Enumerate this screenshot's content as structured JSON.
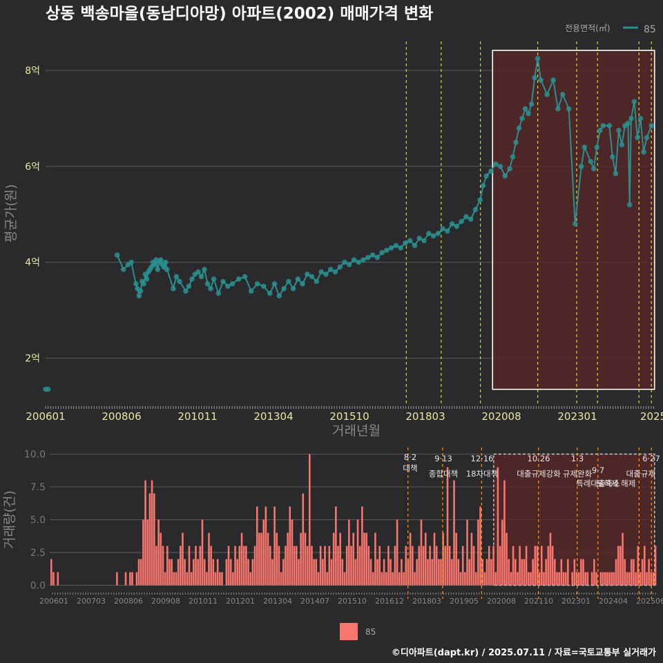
{
  "title": "상동 백송마을(동남디아망) 아파트(2002) 매매가격 변화",
  "footer": "©디아파트(dapt.kr) / 2025.07.11 / 자료=국토교통부 실거래가",
  "legend_top": {
    "title": "전용면적(㎡)",
    "label": "85"
  },
  "legend_bottom": {
    "label": "85"
  },
  "colors": {
    "bg": "#2a2a2d",
    "series": "#2a8f8f",
    "bar": "#f8766d",
    "highlight": "#5a2626",
    "vline": "#dddd00",
    "vline2": "#ff9900"
  },
  "chart_data": [
    {
      "type": "line",
      "xlabel": "거래년월",
      "ylabel": "평균가(원)",
      "x_ticks": [
        "200601",
        "200806",
        "201011",
        "201304",
        "201510",
        "201803",
        "202008",
        "202301",
        "2025"
      ],
      "y_ticks": [
        "2억",
        "4억",
        "6억",
        "8억"
      ],
      "y_tick_values": [
        2,
        4,
        6,
        8
      ],
      "ylim": [
        1.0,
        8.75
      ],
      "xlim": [
        2006.0,
        2025.6
      ],
      "series": [
        {
          "name": "85",
          "points": [
            [
              2006.0,
              1.35
            ],
            [
              2006.08,
              1.35
            ],
            [
              2008.3,
              4.15
            ],
            [
              2008.5,
              3.85
            ],
            [
              2008.65,
              3.95
            ],
            [
              2008.75,
              4.0
            ],
            [
              2008.9,
              3.55
            ],
            [
              2008.95,
              3.45
            ],
            [
              2009.0,
              3.3
            ],
            [
              2009.05,
              3.4
            ],
            [
              2009.1,
              3.6
            ],
            [
              2009.15,
              3.55
            ],
            [
              2009.2,
              3.75
            ],
            [
              2009.25,
              3.65
            ],
            [
              2009.3,
              3.8
            ],
            [
              2009.35,
              3.85
            ],
            [
              2009.4,
              3.9
            ],
            [
              2009.45,
              4.0
            ],
            [
              2009.5,
              3.95
            ],
            [
              2009.55,
              4.05
            ],
            [
              2009.6,
              3.85
            ],
            [
              2009.65,
              4.0
            ],
            [
              2009.7,
              4.05
            ],
            [
              2009.75,
              3.95
            ],
            [
              2009.8,
              3.9
            ],
            [
              2009.85,
              4.0
            ],
            [
              2009.9,
              3.85
            ],
            [
              2010.1,
              3.45
            ],
            [
              2010.2,
              3.7
            ],
            [
              2010.3,
              3.6
            ],
            [
              2010.5,
              3.4
            ],
            [
              2010.6,
              3.5
            ],
            [
              2010.7,
              3.65
            ],
            [
              2010.8,
              3.75
            ],
            [
              2010.9,
              3.8
            ],
            [
              2011.0,
              3.7
            ],
            [
              2011.1,
              3.85
            ],
            [
              2011.2,
              3.55
            ],
            [
              2011.3,
              3.45
            ],
            [
              2011.4,
              3.65
            ],
            [
              2011.55,
              3.35
            ],
            [
              2011.7,
              3.6
            ],
            [
              2011.85,
              3.5
            ],
            [
              2012.0,
              3.55
            ],
            [
              2012.2,
              3.65
            ],
            [
              2012.4,
              3.7
            ],
            [
              2012.6,
              3.4
            ],
            [
              2012.8,
              3.55
            ],
            [
              2013.0,
              3.5
            ],
            [
              2013.2,
              3.35
            ],
            [
              2013.35,
              3.55
            ],
            [
              2013.5,
              3.3
            ],
            [
              2013.65,
              3.45
            ],
            [
              2013.8,
              3.6
            ],
            [
              2013.95,
              3.45
            ],
            [
              2014.1,
              3.65
            ],
            [
              2014.25,
              3.55
            ],
            [
              2014.4,
              3.75
            ],
            [
              2014.55,
              3.7
            ],
            [
              2014.7,
              3.6
            ],
            [
              2014.85,
              3.8
            ],
            [
              2015.0,
              3.75
            ],
            [
              2015.15,
              3.85
            ],
            [
              2015.3,
              3.8
            ],
            [
              2015.45,
              3.9
            ],
            [
              2015.6,
              4.0
            ],
            [
              2015.75,
              3.95
            ],
            [
              2015.9,
              4.05
            ],
            [
              2016.05,
              4.0
            ],
            [
              2016.2,
              4.05
            ],
            [
              2016.35,
              4.1
            ],
            [
              2016.5,
              4.15
            ],
            [
              2016.65,
              4.1
            ],
            [
              2016.8,
              4.2
            ],
            [
              2016.95,
              4.25
            ],
            [
              2017.1,
              4.3
            ],
            [
              2017.25,
              4.35
            ],
            [
              2017.4,
              4.3
            ],
            [
              2017.55,
              4.4
            ],
            [
              2017.7,
              4.45
            ],
            [
              2017.85,
              4.35
            ],
            [
              2018.0,
              4.5
            ],
            [
              2018.15,
              4.45
            ],
            [
              2018.3,
              4.6
            ],
            [
              2018.45,
              4.55
            ],
            [
              2018.6,
              4.6
            ],
            [
              2018.75,
              4.7
            ],
            [
              2018.9,
              4.65
            ],
            [
              2019.05,
              4.8
            ],
            [
              2019.2,
              4.75
            ],
            [
              2019.35,
              4.85
            ],
            [
              2019.5,
              4.95
            ],
            [
              2019.65,
              4.9
            ],
            [
              2019.8,
              5.1
            ],
            [
              2019.95,
              5.3
            ],
            [
              2020.05,
              5.6
            ],
            [
              2020.15,
              5.8
            ],
            [
              2020.3,
              5.9
            ],
            [
              2020.45,
              6.05
            ],
            [
              2020.6,
              6.0
            ],
            [
              2020.75,
              5.8
            ],
            [
              2020.9,
              5.95
            ],
            [
              2021.0,
              6.2
            ],
            [
              2021.1,
              6.5
            ],
            [
              2021.2,
              6.8
            ],
            [
              2021.3,
              7.0
            ],
            [
              2021.4,
              7.2
            ],
            [
              2021.5,
              7.1
            ],
            [
              2021.6,
              7.3
            ],
            [
              2021.7,
              7.85
            ],
            [
              2021.8,
              8.25
            ],
            [
              2021.9,
              7.8
            ],
            [
              2022.1,
              7.5
            ],
            [
              2022.3,
              7.8
            ],
            [
              2022.45,
              7.2
            ],
            [
              2022.6,
              7.5
            ],
            [
              2022.8,
              7.2
            ],
            [
              2023.0,
              4.8
            ],
            [
              2023.2,
              6.0
            ],
            [
              2023.3,
              6.4
            ],
            [
              2023.5,
              6.1
            ],
            [
              2023.6,
              5.95
            ],
            [
              2023.7,
              6.4
            ],
            [
              2023.8,
              6.75
            ],
            [
              2023.9,
              6.85
            ],
            [
              2024.1,
              6.85
            ],
            [
              2024.2,
              6.2
            ],
            [
              2024.3,
              5.85
            ],
            [
              2024.4,
              6.75
            ],
            [
              2024.5,
              6.45
            ],
            [
              2024.6,
              6.85
            ],
            [
              2024.7,
              6.9
            ],
            [
              2024.75,
              5.2
            ],
            [
              2024.8,
              7.0
            ],
            [
              2024.9,
              7.35
            ],
            [
              2025.0,
              6.6
            ],
            [
              2025.1,
              7.0
            ],
            [
              2025.2,
              6.3
            ],
            [
              2025.3,
              6.6
            ],
            [
              2025.45,
              6.85
            ]
          ]
        }
      ],
      "highlight_range": [
        2020.35,
        2025.55
      ],
      "vlines": [
        2017.58,
        2018.7,
        2019.96,
        2021.8,
        2023.05,
        2023.72,
        2025.05,
        2025.45
      ]
    },
    {
      "type": "bar",
      "xlabel": "",
      "ylabel": "거래량(건)",
      "x_ticks": [
        "200601",
        "200703",
        "200806",
        "200908",
        "201011",
        "201201",
        "201304",
        "201407",
        "201510",
        "201612",
        "201803",
        "201905",
        "202008",
        "202110",
        "202301",
        "202404",
        "202506"
      ],
      "y_ticks": [
        "0.0",
        "2.5",
        "5.0",
        "7.5",
        "10.0"
      ],
      "y_tick_values": [
        0,
        2.5,
        5,
        7.5,
        10
      ],
      "ylim": [
        -0.5,
        10.5
      ],
      "series": [
        {
          "name": "85",
          "values": [
            2,
            1,
            0,
            1,
            0,
            0,
            0,
            0,
            0,
            0,
            0,
            0,
            0,
            0,
            0,
            0,
            0,
            0,
            0,
            0,
            0,
            0,
            0,
            0,
            0,
            0,
            0,
            0,
            0,
            0,
            1,
            0,
            0,
            0,
            1,
            0,
            1,
            1,
            0,
            1,
            2,
            2,
            5,
            8,
            5,
            7,
            8,
            7,
            3,
            5,
            4,
            3,
            1,
            3,
            2,
            2,
            1,
            1,
            2,
            3,
            4,
            2,
            1,
            3,
            1,
            2,
            3,
            2,
            3,
            5,
            2,
            1,
            4,
            3,
            2,
            1,
            2,
            1,
            1,
            0,
            2,
            3,
            2,
            1,
            3,
            2,
            3,
            4,
            3,
            3,
            2,
            1,
            2,
            3,
            6,
            4,
            4,
            5,
            6,
            4,
            3,
            2,
            6,
            4,
            3,
            1,
            2,
            3,
            4,
            6,
            5,
            3,
            3,
            2,
            4,
            7,
            4,
            3,
            10,
            3,
            2,
            2,
            1,
            3,
            2,
            3,
            1,
            3,
            2,
            4,
            6,
            3,
            4,
            2,
            1,
            3,
            5,
            3,
            4,
            2,
            5,
            3,
            6,
            4,
            4,
            3,
            2,
            1,
            4,
            2,
            3,
            1,
            2,
            1,
            3,
            2,
            1,
            3,
            5,
            1,
            2,
            1,
            3,
            2,
            4,
            3,
            1,
            2,
            3,
            5,
            3,
            4,
            2,
            3,
            2,
            4,
            3,
            2,
            2,
            4,
            3,
            9,
            3,
            2,
            8,
            4,
            2,
            1,
            3,
            1,
            5,
            2,
            4,
            3,
            1,
            5,
            6,
            2,
            1,
            2,
            3,
            2,
            3,
            1,
            9,
            3,
            5,
            8,
            4,
            2,
            1,
            3,
            2,
            1,
            3,
            2,
            2,
            3,
            1,
            1,
            2,
            3,
            3,
            1,
            3,
            1,
            2,
            3,
            4,
            3,
            2,
            1,
            1,
            2,
            1,
            1,
            2,
            0,
            1,
            2,
            1,
            1,
            2,
            2,
            1,
            1,
            0,
            1,
            2,
            1,
            0,
            1,
            1,
            1,
            1,
            1,
            1,
            1,
            2,
            3,
            3,
            4,
            2,
            1,
            1,
            2,
            2,
            1,
            3,
            1,
            2,
            3,
            1,
            2,
            1,
            1,
            3
          ]
        }
      ],
      "highlight_range": [
        2020.35,
        2025.55
      ],
      "vlines": [
        2017.58,
        2018.7,
        2019.96,
        2021.8,
        2023.05,
        2023.72,
        2025.05,
        2025.45
      ],
      "annotations": [
        {
          "date": "8·2",
          "text": "대책"
        },
        {
          "date": "9·13",
          "text": "종합대책"
        },
        {
          "date": "12·16",
          "text": "18차대책"
        },
        {
          "date": "10.26",
          "text": "대출규제강화"
        },
        {
          "date": "1·3",
          "text": "규제완화"
        },
        {
          "date": "9·7",
          "text": "특례대출축소"
        },
        {
          "date": "",
          "text": "토허제 해제"
        },
        {
          "date": "6·27",
          "text": "대출규제"
        }
      ]
    }
  ]
}
